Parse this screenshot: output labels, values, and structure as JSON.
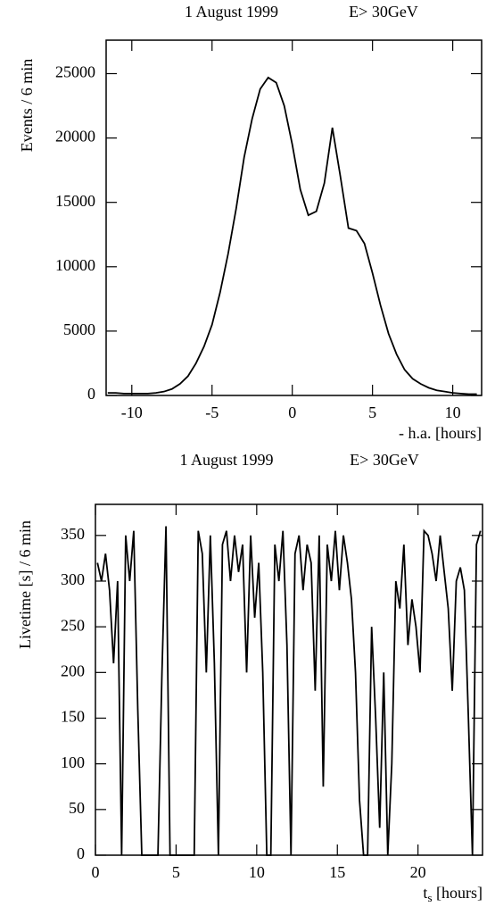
{
  "chart_data": [
    {
      "type": "line",
      "title": "1 August 1999",
      "subtitle": "E> 30GeV",
      "xlabel": "- h.a. [hours]",
      "ylabel": "Events / 6 min",
      "xlim": [
        -11.6,
        11.8
      ],
      "ylim": [
        0,
        27600
      ],
      "xticks": [
        -10,
        -5,
        0,
        5,
        10
      ],
      "yticks": [
        0,
        5000,
        10000,
        15000,
        20000,
        25000
      ],
      "x": [
        -11.5,
        -11,
        -10.5,
        -10,
        -9.5,
        -9,
        -8.5,
        -8,
        -7.5,
        -7,
        -6.5,
        -6,
        -5.5,
        -5,
        -4.5,
        -4,
        -3.5,
        -3,
        -2.5,
        -2,
        -1.5,
        -1,
        -0.5,
        0,
        0.5,
        1,
        1.5,
        2,
        2.5,
        3,
        3.5,
        4,
        4.5,
        5,
        5.5,
        6,
        6.5,
        7,
        7.5,
        8,
        8.5,
        9,
        9.5,
        10,
        10.5,
        11,
        11.5
      ],
      "series": [
        {
          "color": "#000000",
          "values": [
            200,
            200,
            150,
            150,
            150,
            150,
            200,
            300,
            500,
            900,
            1500,
            2500,
            3800,
            5500,
            8000,
            11000,
            14500,
            18500,
            21500,
            23800,
            24700,
            24300,
            22500,
            19500,
            16000,
            14000,
            14300,
            16500,
            20800,
            17000,
            13000,
            12800,
            11800,
            9500,
            7000,
            4800,
            3200,
            2000,
            1300,
            900,
            600,
            400,
            300,
            200,
            150,
            100,
            100
          ]
        }
      ]
    },
    {
      "type": "line",
      "title": "1 August 1999",
      "subtitle": "E> 30GeV",
      "xlabel_parts": [
        "t",
        "s",
        " [hours]"
      ],
      "ylabel": "Livetime [s] / 6 min",
      "xlim": [
        0,
        24
      ],
      "ylim": [
        0,
        384
      ],
      "xticks": [
        0,
        5,
        10,
        15,
        20
      ],
      "yticks": [
        0,
        50,
        100,
        150,
        200,
        250,
        300,
        350
      ],
      "x": [
        0.125,
        0.375,
        0.625,
        0.875,
        1.125,
        1.375,
        1.625,
        1.875,
        2.125,
        2.375,
        2.625,
        2.875,
        3.125,
        3.375,
        3.625,
        3.875,
        4.125,
        4.375,
        4.625,
        4.875,
        5.125,
        5.375,
        5.625,
        5.875,
        6.125,
        6.375,
        6.625,
        6.875,
        7.125,
        7.375,
        7.625,
        7.875,
        8.125,
        8.375,
        8.625,
        8.875,
        9.125,
        9.375,
        9.625,
        9.875,
        10.125,
        10.375,
        10.625,
        10.875,
        11.125,
        11.375,
        11.625,
        11.875,
        12.125,
        12.375,
        12.625,
        12.875,
        13.125,
        13.375,
        13.625,
        13.875,
        14.125,
        14.375,
        14.625,
        14.875,
        15.125,
        15.375,
        15.625,
        15.875,
        16.125,
        16.375,
        16.625,
        16.875,
        17.125,
        17.375,
        17.625,
        17.875,
        18.125,
        18.375,
        18.625,
        18.875,
        19.125,
        19.375,
        19.625,
        19.875,
        20.125,
        20.375,
        20.625,
        20.875,
        21.125,
        21.375,
        21.625,
        21.875,
        22.125,
        22.375,
        22.625,
        22.875,
        23.125,
        23.375,
        23.625,
        23.875
      ],
      "series": [
        {
          "color": "#000000",
          "values": [
            320,
            300,
            330,
            290,
            210,
            300,
            0,
            350,
            300,
            355,
            160,
            0,
            0,
            0,
            0,
            0,
            200,
            360,
            0,
            0,
            0,
            0,
            0,
            0,
            0,
            355,
            330,
            200,
            350,
            210,
            0,
            340,
            355,
            300,
            350,
            310,
            340,
            200,
            350,
            260,
            320,
            200,
            0,
            0,
            340,
            300,
            355,
            230,
            0,
            330,
            350,
            290,
            340,
            320,
            180,
            350,
            75,
            340,
            300,
            355,
            290,
            350,
            320,
            280,
            200,
            60,
            0,
            0,
            250,
            150,
            30,
            200,
            0,
            100,
            300,
            270,
            340,
            230,
            280,
            250,
            200,
            355,
            350,
            330,
            300,
            350,
            310,
            270,
            180,
            300,
            315,
            290,
            150,
            0,
            340,
            355
          ]
        }
      ]
    }
  ]
}
